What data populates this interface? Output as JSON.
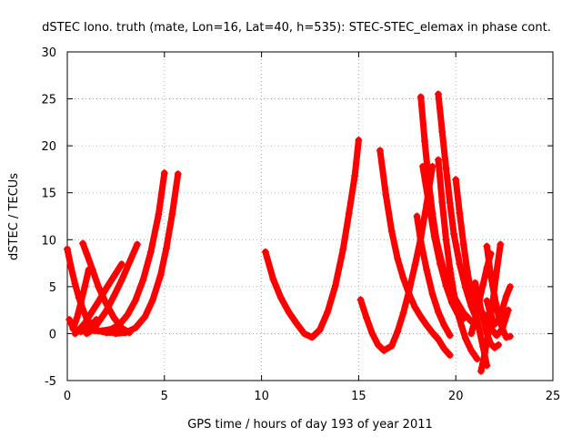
{
  "chart_data": {
    "type": "scatter",
    "title": "dSTEC Iono. truth (mate, Lon=16, Lat=40, h=535): STEC-STEC_elemax in phase cont.",
    "xlabel": "GPS time / hours of day 193 of year 2011",
    "ylabel": "dSTEC  / TECUs",
    "xlim": [
      0,
      25
    ],
    "ylim": [
      -5,
      30
    ],
    "xticks": [
      "0",
      "5",
      "10",
      "15",
      "20",
      "25"
    ],
    "yticks": [
      "-5",
      "0",
      "5",
      "10",
      "15",
      "20",
      "25",
      "30"
    ],
    "grid": true,
    "marker": "+",
    "color": "#ff0000",
    "series": [
      {
        "x": [
          0.0,
          0.2,
          0.4,
          0.6,
          0.8,
          1.0,
          1.3,
          1.6,
          2.0,
          2.4,
          2.8
        ],
        "y": [
          9.0,
          7.0,
          5.3,
          3.8,
          2.6,
          1.6,
          0.8,
          0.3,
          0.1,
          0.1,
          0.2
        ]
      },
      {
        "x": [
          0.1,
          0.3,
          0.5,
          0.7,
          0.9,
          1.2,
          1.5
        ],
        "y": [
          1.5,
          0.6,
          0.3,
          0.2,
          0.3,
          0.8,
          1.5
        ]
      },
      {
        "x": [
          0.3,
          0.5,
          0.7,
          0.9,
          1.1
        ],
        "y": [
          0.5,
          1.7,
          3.3,
          5.0,
          6.8
        ]
      },
      {
        "x": [
          0.8,
          1.0,
          1.3,
          1.6,
          2.0,
          2.4,
          2.8,
          3.2
        ],
        "y": [
          9.6,
          8.5,
          6.8,
          5.0,
          3.2,
          1.7,
          0.6,
          0.1
        ]
      },
      {
        "x": [
          0.4,
          0.6,
          0.9,
          1.2,
          1.6,
          2.0,
          2.4,
          2.8
        ],
        "y": [
          0.0,
          0.4,
          1.1,
          2.1,
          3.4,
          4.8,
          6.1,
          7.4
        ]
      },
      {
        "x": [
          1.0,
          1.3,
          1.6,
          2.0,
          2.4,
          2.8,
          3.2,
          3.6
        ],
        "y": [
          0.0,
          0.4,
          1.2,
          2.4,
          4.0,
          5.7,
          7.6,
          9.5
        ]
      },
      {
        "x": [
          1.4,
          1.8,
          2.3,
          2.7,
          3.1,
          3.5,
          3.9,
          4.3,
          4.7,
          5.0
        ],
        "y": [
          0.3,
          0.3,
          0.5,
          1.0,
          2.0,
          3.5,
          5.7,
          8.7,
          12.7,
          17.1
        ]
      },
      {
        "x": [
          2.5,
          3.0,
          3.5,
          4.0,
          4.4,
          4.8,
          5.1,
          5.4,
          5.7
        ],
        "y": [
          0.0,
          0.1,
          0.6,
          1.8,
          3.6,
          6.2,
          9.1,
          12.7,
          17.0
        ]
      },
      {
        "x": [
          10.2,
          10.6,
          11.0,
          11.4,
          11.8,
          12.2,
          12.6,
          13.0,
          13.4,
          13.8,
          14.2,
          14.5,
          14.8,
          15.0
        ],
        "y": [
          8.7,
          5.8,
          3.8,
          2.3,
          1.1,
          0.0,
          -0.4,
          0.4,
          2.3,
          5.1,
          9.0,
          12.8,
          16.8,
          20.6
        ]
      },
      {
        "x": [
          15.1,
          15.4,
          15.7,
          16.0,
          16.3,
          16.7
        ],
        "y": [
          3.6,
          1.7,
          0.0,
          -1.2,
          -1.8,
          -1.3
        ]
      },
      {
        "x": [
          16.1,
          16.4,
          16.7,
          17.0,
          17.3,
          17.6,
          17.9,
          18.2,
          18.5,
          18.8,
          19.1,
          19.4,
          19.7
        ],
        "y": [
          19.5,
          14.8,
          10.9,
          8.0,
          5.9,
          4.2,
          2.8,
          1.8,
          0.9,
          0.1,
          -0.6,
          -1.6,
          -2.3
        ]
      },
      {
        "x": [
          16.7,
          17.0,
          17.3,
          17.6,
          17.9,
          18.2,
          18.5,
          18.8
        ],
        "y": [
          -1.3,
          0.2,
          2.2,
          4.6,
          7.3,
          10.2,
          13.8,
          17.8
        ]
      },
      {
        "x": [
          18.2,
          18.4,
          18.6,
          18.8,
          19.0,
          19.3,
          19.6,
          20.0,
          20.4,
          20.8
        ],
        "y": [
          25.2,
          20.5,
          16.3,
          12.8,
          10.0,
          7.4,
          5.4,
          3.6,
          2.2,
          1.3
        ]
      },
      {
        "x": [
          18.3,
          18.6,
          18.9,
          19.2,
          19.5,
          19.8,
          20.1,
          20.4
        ],
        "y": [
          17.8,
          14.0,
          10.3,
          7.4,
          5.1,
          3.3,
          2.1,
          1.6
        ]
      },
      {
        "x": [
          19.1,
          19.3,
          19.5,
          19.7,
          19.9,
          20.2,
          20.5,
          20.8,
          21.1
        ],
        "y": [
          25.5,
          21.5,
          17.6,
          13.9,
          10.6,
          7.4,
          4.9,
          2.9,
          1.4
        ]
      },
      {
        "x": [
          19.1,
          19.3,
          19.5,
          19.7,
          19.9,
          20.1,
          20.3,
          20.5,
          20.8,
          21.1
        ],
        "y": [
          18.5,
          14.0,
          10.0,
          6.9,
          4.3,
          2.2,
          0.8,
          -0.5,
          -1.8,
          -2.7
        ]
      },
      {
        "x": [
          18.0,
          18.2,
          18.5,
          18.8,
          19.1,
          19.4,
          19.7
        ],
        "y": [
          12.5,
          9.8,
          6.8,
          4.2,
          2.3,
          0.9,
          -0.2
        ]
      },
      {
        "x": [
          20.0,
          20.2,
          20.4,
          20.6,
          20.8,
          21.0,
          21.2,
          21.4,
          21.6
        ],
        "y": [
          16.4,
          12.8,
          9.5,
          6.6,
          4.2,
          2.2,
          0.5,
          -1.4,
          -3.4
        ]
      },
      {
        "x": [
          21.3,
          21.5,
          21.7,
          21.9,
          22.1,
          22.3
        ],
        "y": [
          -4.0,
          -2.0,
          0.3,
          3.3,
          6.6,
          9.5
        ]
      },
      {
        "x": [
          21.6,
          21.8,
          22.0,
          22.2,
          22.4,
          22.6,
          22.8
        ],
        "y": [
          9.3,
          6.2,
          3.9,
          1.9,
          0.5,
          -0.4,
          -0.3
        ]
      },
      {
        "x": [
          20.8,
          21.0,
          21.2,
          21.4,
          21.6,
          21.8
        ],
        "y": [
          0.0,
          1.6,
          3.4,
          5.2,
          7.0,
          8.5
        ]
      },
      {
        "x": [
          21.5,
          21.8,
          22.1,
          22.4,
          22.7
        ],
        "y": [
          2.0,
          0.6,
          -0.2,
          0.5,
          2.5
        ]
      },
      {
        "x": [
          21.6,
          21.8,
          22.0,
          22.2,
          22.4,
          22.6,
          22.8
        ],
        "y": [
          3.5,
          2.0,
          1.0,
          1.4,
          2.6,
          4.0,
          5.0
        ]
      },
      {
        "x": [
          21.0,
          21.2,
          21.4,
          21.6,
          21.8,
          22.0,
          22.2
        ],
        "y": [
          5.4,
          3.5,
          1.7,
          0.0,
          -1.1,
          -1.5,
          -1.2
        ]
      }
    ]
  }
}
